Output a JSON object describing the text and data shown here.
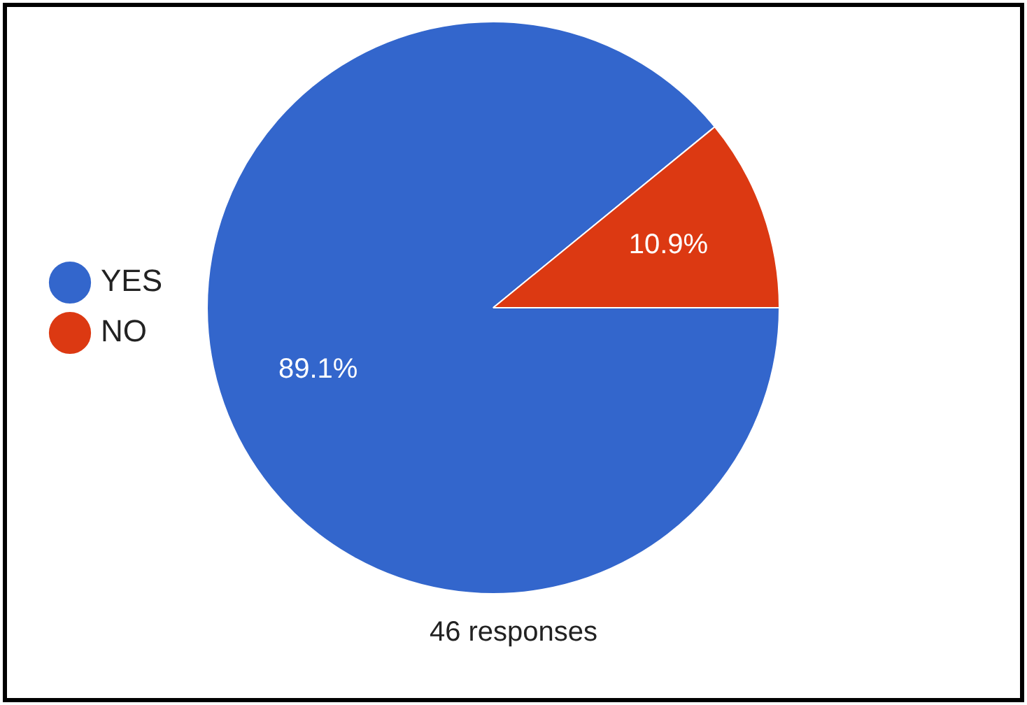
{
  "chart_data": {
    "type": "pie",
    "categories": [
      "YES",
      "NO"
    ],
    "values": [
      89.1,
      10.9
    ],
    "colors": [
      "#3366cc",
      "#dc3912"
    ],
    "legend": "left",
    "value_labels": [
      "89.1%",
      "10.9%"
    ],
    "annotations": [
      "46 responses"
    ]
  }
}
